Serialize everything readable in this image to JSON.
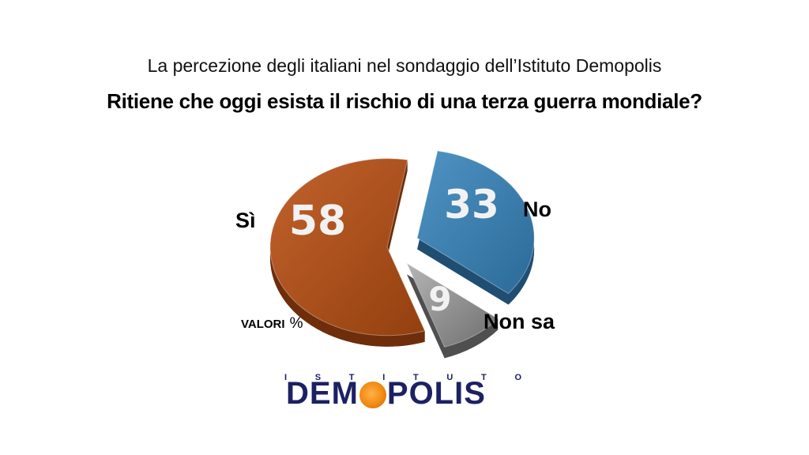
{
  "header": {
    "subtitle": "La percezione degli italiani nel sondaggio dell’Istituto Demopolis",
    "title": "Ritiene che oggi esista il rischio di una terza guerra mondiale?"
  },
  "chart_data": {
    "type": "pie",
    "title": "Ritiene che oggi esista il rischio di una terza guerra mondiale?",
    "categories": [
      "Sì",
      "No",
      "Non sa"
    ],
    "values": [
      58,
      33,
      9
    ],
    "value_labels": [
      "58",
      "33",
      "9"
    ],
    "unit_note": "VALORI",
    "unit_symbol": "%",
    "colors": [
      "#b2521f",
      "#3a7fb0",
      "#8f8f8f"
    ]
  },
  "logo": {
    "top": [
      "I",
      "S",
      "T",
      "I",
      "T",
      "U",
      "T",
      "O"
    ],
    "name_left": "DEM",
    "name_right": "POLIS"
  }
}
